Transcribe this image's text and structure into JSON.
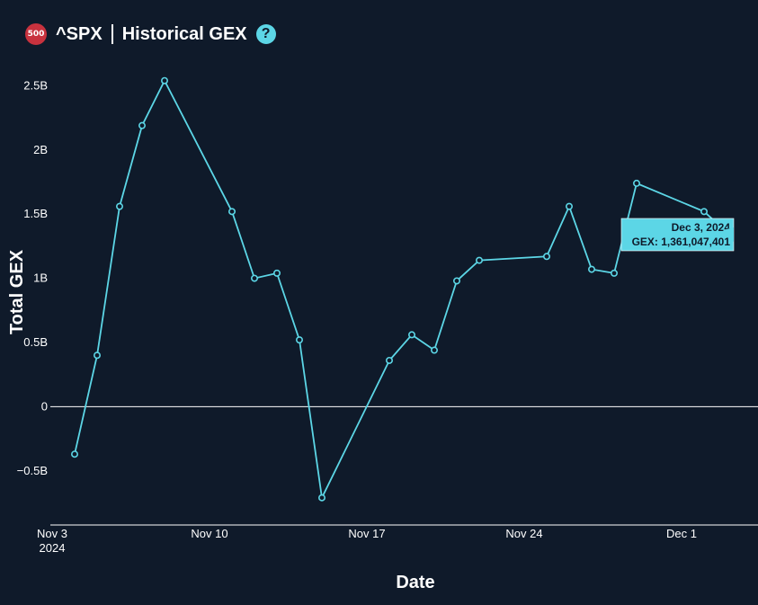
{
  "header": {
    "badge": "500",
    "ticker": "^SPX",
    "title": "Historical GEX",
    "help": "?"
  },
  "colors": {
    "background": "#0f1a2a",
    "line": "#5cd6e6",
    "badge": "#c8323e",
    "tooltip": "#5cd6e6"
  },
  "chart_data": {
    "type": "line",
    "xlabel": "Date",
    "ylabel": "Total GEX",
    "ylim": [
      -0.95,
      2.65
    ],
    "xlim": [
      "2024-11-03",
      "2024-12-04"
    ],
    "y_ticks": [
      {
        "value": -0.5,
        "label": "−0.5B"
      },
      {
        "value": 0,
        "label": "0"
      },
      {
        "value": 0.5,
        "label": "0.5B"
      },
      {
        "value": 1,
        "label": "1B"
      },
      {
        "value": 1.5,
        "label": "1.5B"
      },
      {
        "value": 2,
        "label": "2B"
      },
      {
        "value": 2.5,
        "label": "2.5B"
      }
    ],
    "x_ticks": [
      {
        "date": "2024-11-03",
        "label": "Nov 3",
        "sublabel": "2024"
      },
      {
        "date": "2024-11-10",
        "label": "Nov 10",
        "sublabel": ""
      },
      {
        "date": "2024-11-17",
        "label": "Nov 17",
        "sublabel": ""
      },
      {
        "date": "2024-11-24",
        "label": "Nov 24",
        "sublabel": ""
      },
      {
        "date": "2024-12-01",
        "label": "Dec 1",
        "sublabel": ""
      }
    ],
    "grid": false,
    "series": [
      {
        "points": [
          {
            "x": "2024-11-04",
            "y": -0.37
          },
          {
            "x": "2024-11-05",
            "y": 0.4
          },
          {
            "x": "2024-11-06",
            "y": 1.56
          },
          {
            "x": "2024-11-07",
            "y": 2.19
          },
          {
            "x": "2024-11-08",
            "y": 2.54
          },
          {
            "x": "2024-11-11",
            "y": 1.52
          },
          {
            "x": "2024-11-12",
            "y": 1.0
          },
          {
            "x": "2024-11-13",
            "y": 1.04
          },
          {
            "x": "2024-11-14",
            "y": 0.52
          },
          {
            "x": "2024-11-15",
            "y": -0.71
          },
          {
            "x": "2024-11-18",
            "y": 0.36
          },
          {
            "x": "2024-11-19",
            "y": 0.56
          },
          {
            "x": "2024-11-20",
            "y": 0.44
          },
          {
            "x": "2024-11-21",
            "y": 0.98
          },
          {
            "x": "2024-11-22",
            "y": 1.14
          },
          {
            "x": "2024-11-25",
            "y": 1.17
          },
          {
            "x": "2024-11-26",
            "y": 1.56
          },
          {
            "x": "2024-11-27",
            "y": 1.07
          },
          {
            "x": "2024-11-28",
            "y": 1.04
          },
          {
            "x": "2024-11-29",
            "y": 1.74
          },
          {
            "x": "2024-12-02",
            "y": 1.52
          },
          {
            "x": "2024-12-03",
            "y": 1.361047401
          }
        ]
      }
    ],
    "tooltip": {
      "x": "2024-12-03",
      "y": 1.361047401,
      "title": "Dec 3, 2024",
      "value_text": "GEX: 1,361,047,401"
    }
  }
}
